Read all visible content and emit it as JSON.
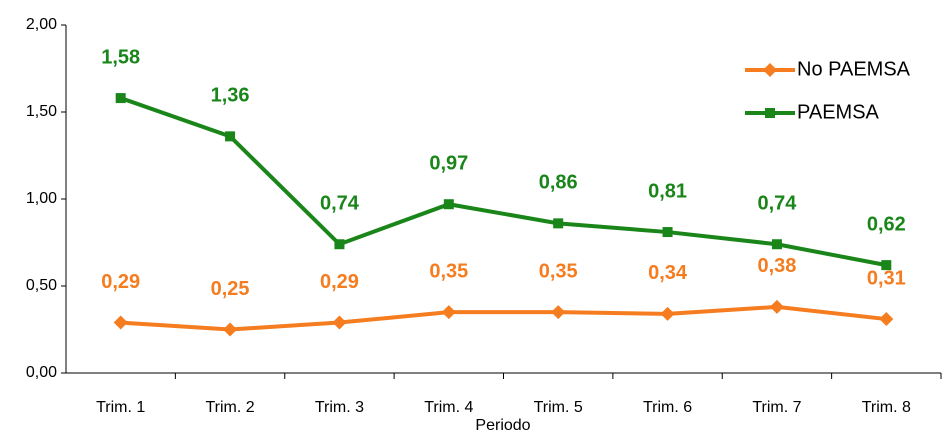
{
  "chart_data": {
    "type": "line",
    "x_label": "Periodo",
    "categories": [
      "Trim. 1",
      "Trim. 2",
      "Trim. 3",
      "Trim. 4",
      "Trim. 5",
      "Trim. 6",
      "Trim. 7",
      "Trim. 8"
    ],
    "series": [
      {
        "name": "No PAEMSA",
        "color": "#f57c1f",
        "marker": "diamond",
        "values": [
          0.29,
          0.25,
          0.29,
          0.35,
          0.35,
          0.34,
          0.38,
          0.31
        ],
        "value_labels": [
          "0,29",
          "0,25",
          "0,29",
          "0,35",
          "0,35",
          "0,34",
          "0,38",
          "0,31"
        ]
      },
      {
        "name": "PAEMSA",
        "color": "#1a861a",
        "marker": "square",
        "values": [
          1.58,
          1.36,
          0.74,
          0.97,
          0.86,
          0.81,
          0.74,
          0.62
        ],
        "value_labels": [
          "1,58",
          "1,36",
          "0,74",
          "0,97",
          "0,86",
          "0,81",
          "0,74",
          "0,62"
        ]
      }
    ],
    "ylim": [
      0,
      2
    ],
    "yticks": [
      {
        "value": 0,
        "label": "0,00"
      },
      {
        "value": 0.5,
        "label": "0,50"
      },
      {
        "value": 1,
        "label": "1,00"
      },
      {
        "value": 1.5,
        "label": "1,50"
      },
      {
        "value": 2,
        "label": "2,00"
      }
    ],
    "grid": false,
    "legend": "upper right"
  }
}
